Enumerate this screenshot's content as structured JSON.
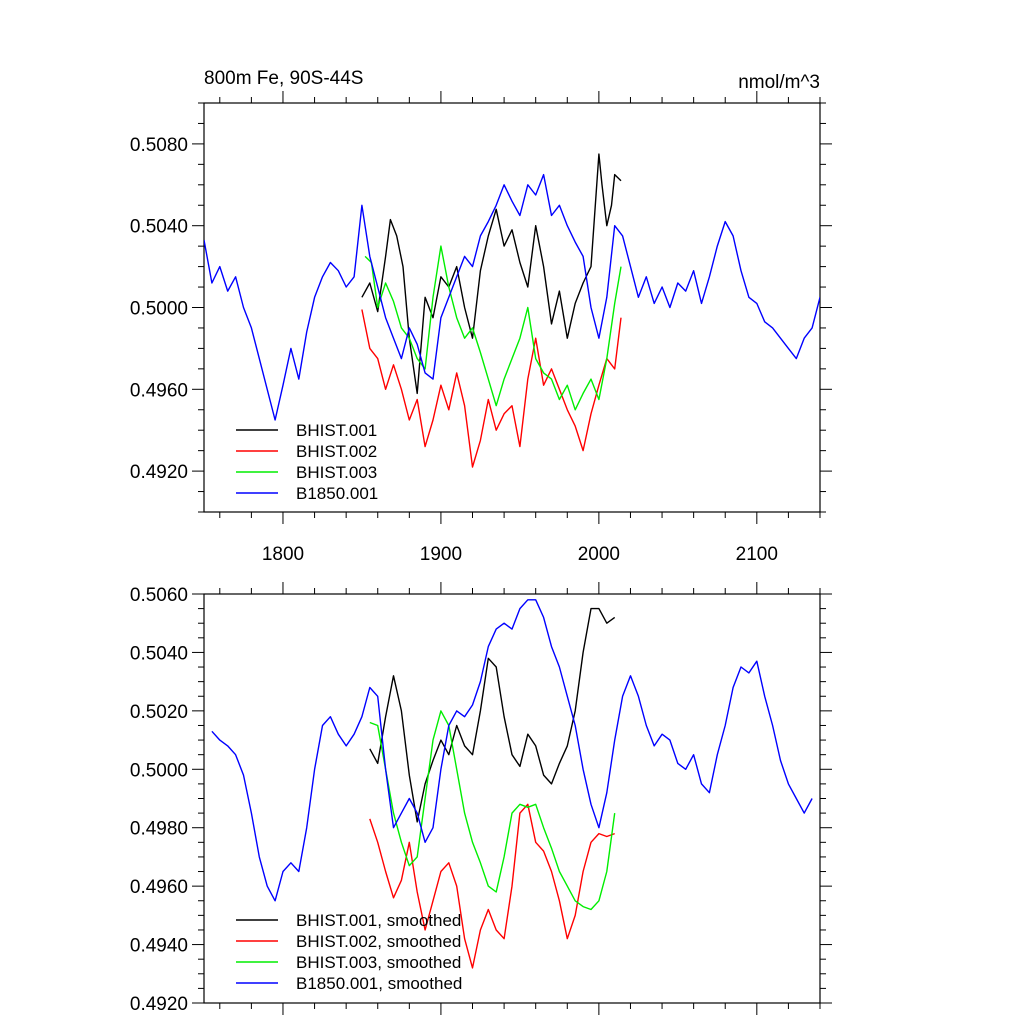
{
  "chart_data": [
    {
      "type": "line",
      "title_left": "800m Fe, 90S-44S",
      "title_right": "nmol/m^3",
      "xlabel": "",
      "ylabel": "",
      "xlim": [
        1750,
        2140
      ],
      "ylim": [
        0.49,
        0.51
      ],
      "xticks": [
        1800,
        1900,
        2000,
        2100
      ],
      "xtick_labels": [
        "1800",
        "1900",
        "2000",
        "2100"
      ],
      "yticks": [
        0.492,
        0.496,
        0.5,
        0.504,
        0.508
      ],
      "ytick_labels": [
        "0.4920",
        "0.4960",
        "0.5000",
        "0.5040",
        "0.5080"
      ],
      "legend_position": "bottom-left",
      "series": [
        {
          "name": "BHIST.001",
          "color": "#000000",
          "x": [
            1850,
            1855,
            1860,
            1865,
            1868,
            1872,
            1876,
            1880,
            1885,
            1890,
            1895,
            1900,
            1905,
            1910,
            1915,
            1920,
            1925,
            1930,
            1935,
            1940,
            1945,
            1950,
            1955,
            1960,
            1965,
            1970,
            1975,
            1980,
            1985,
            1990,
            1995,
            2000,
            2002,
            2005,
            2008,
            2010,
            2014
          ],
          "y": [
            0.5005,
            0.5012,
            0.4998,
            0.5025,
            0.5043,
            0.5035,
            0.502,
            0.4985,
            0.4958,
            0.5005,
            0.4995,
            0.5015,
            0.501,
            0.502,
            0.5,
            0.4985,
            0.5018,
            0.5035,
            0.5048,
            0.503,
            0.5038,
            0.5022,
            0.501,
            0.504,
            0.502,
            0.4992,
            0.5008,
            0.4985,
            0.5002,
            0.5012,
            0.502,
            0.5075,
            0.506,
            0.504,
            0.505,
            0.5065,
            0.5062
          ]
        },
        {
          "name": "BHIST.002",
          "color": "#ff0000",
          "x": [
            1850,
            1855,
            1860,
            1865,
            1870,
            1875,
            1880,
            1885,
            1890,
            1895,
            1900,
            1905,
            1910,
            1915,
            1920,
            1925,
            1930,
            1935,
            1940,
            1945,
            1950,
            1955,
            1960,
            1965,
            1970,
            1975,
            1980,
            1985,
            1990,
            1995,
            2000,
            2005,
            2010,
            2014
          ],
          "y": [
            0.4999,
            0.498,
            0.4975,
            0.496,
            0.4972,
            0.496,
            0.4945,
            0.4955,
            0.4932,
            0.4945,
            0.4962,
            0.495,
            0.4968,
            0.4952,
            0.4922,
            0.4935,
            0.4955,
            0.494,
            0.4948,
            0.4952,
            0.4932,
            0.4965,
            0.4985,
            0.4962,
            0.497,
            0.496,
            0.495,
            0.4942,
            0.493,
            0.4948,
            0.4962,
            0.4975,
            0.497,
            0.4995
          ]
        },
        {
          "name": "BHIST.003",
          "color": "#00ee00",
          "x": [
            1852,
            1856,
            1860,
            1865,
            1870,
            1875,
            1880,
            1885,
            1890,
            1895,
            1900,
            1905,
            1910,
            1915,
            1920,
            1925,
            1930,
            1935,
            1940,
            1945,
            1950,
            1955,
            1960,
            1965,
            1970,
            1975,
            1980,
            1985,
            1990,
            1995,
            2000,
            2005,
            2010,
            2014
          ],
          "y": [
            0.5025,
            0.5022,
            0.5,
            0.5012,
            0.5003,
            0.499,
            0.4985,
            0.4975,
            0.497,
            0.5005,
            0.503,
            0.501,
            0.4995,
            0.4985,
            0.499,
            0.4978,
            0.4965,
            0.4952,
            0.4965,
            0.4975,
            0.4985,
            0.5,
            0.4975,
            0.4968,
            0.4965,
            0.4955,
            0.4962,
            0.495,
            0.4958,
            0.4965,
            0.4955,
            0.4975,
            0.5002,
            0.502
          ]
        },
        {
          "name": "B1850.001",
          "color": "#0000ff",
          "x": [
            1750,
            1755,
            1760,
            1765,
            1770,
            1775,
            1780,
            1785,
            1790,
            1795,
            1800,
            1805,
            1810,
            1815,
            1820,
            1825,
            1830,
            1835,
            1840,
            1845,
            1850,
            1855,
            1860,
            1865,
            1870,
            1875,
            1880,
            1885,
            1890,
            1895,
            1900,
            1905,
            1910,
            1915,
            1920,
            1925,
            1930,
            1935,
            1940,
            1945,
            1950,
            1955,
            1960,
            1965,
            1970,
            1975,
            1980,
            1985,
            1990,
            1995,
            2000,
            2005,
            2010,
            2015,
            2020,
            2025,
            2030,
            2035,
            2040,
            2045,
            2050,
            2055,
            2060,
            2065,
            2070,
            2075,
            2080,
            2085,
            2090,
            2095,
            2100,
            2105,
            2110,
            2115,
            2120,
            2125,
            2130,
            2135,
            2140
          ],
          "y": [
            0.5033,
            0.5012,
            0.502,
            0.5008,
            0.5015,
            0.5,
            0.499,
            0.4975,
            0.496,
            0.4945,
            0.4962,
            0.498,
            0.4965,
            0.4988,
            0.5005,
            0.5015,
            0.5022,
            0.5018,
            0.501,
            0.5015,
            0.505,
            0.5025,
            0.501,
            0.4995,
            0.4985,
            0.4975,
            0.499,
            0.4982,
            0.4968,
            0.4965,
            0.4995,
            0.5005,
            0.5015,
            0.5025,
            0.502,
            0.5035,
            0.5042,
            0.505,
            0.506,
            0.5052,
            0.5045,
            0.506,
            0.5055,
            0.5065,
            0.5045,
            0.505,
            0.504,
            0.5032,
            0.5025,
            0.5,
            0.4985,
            0.5005,
            0.504,
            0.5035,
            0.502,
            0.5005,
            0.5015,
            0.5002,
            0.501,
            0.5,
            0.5012,
            0.5008,
            0.5018,
            0.5002,
            0.5015,
            0.503,
            0.5042,
            0.5035,
            0.5018,
            0.5005,
            0.5002,
            0.4993,
            0.499,
            0.4985,
            0.498,
            0.4975,
            0.4985,
            0.499,
            0.5005
          ]
        }
      ]
    },
    {
      "type": "line",
      "title_left": "",
      "title_right": "",
      "xlabel": "",
      "ylabel": "",
      "xlim": [
        1750,
        2140
      ],
      "ylim": [
        0.492,
        0.506
      ],
      "xticks": [
        1800,
        1900,
        2000,
        2100
      ],
      "xtick_labels": [],
      "yticks": [
        0.492,
        0.494,
        0.496,
        0.498,
        0.5,
        0.502,
        0.504,
        0.506
      ],
      "ytick_labels": [
        "0.4920",
        "0.4940",
        "0.4960",
        "0.4980",
        "0.5000",
        "0.5020",
        "0.5040",
        "0.5060"
      ],
      "legend_position": "bottom-left",
      "series": [
        {
          "name": "BHIST.001, smoothed",
          "color": "#000000",
          "x": [
            1855,
            1860,
            1865,
            1870,
            1875,
            1880,
            1885,
            1890,
            1895,
            1900,
            1905,
            1910,
            1915,
            1920,
            1925,
            1930,
            1935,
            1940,
            1945,
            1950,
            1955,
            1960,
            1965,
            1970,
            1975,
            1980,
            1985,
            1990,
            1995,
            2000,
            2005,
            2010
          ],
          "y": [
            0.5007,
            0.5002,
            0.5018,
            0.5032,
            0.502,
            0.4998,
            0.4982,
            0.4995,
            0.5003,
            0.501,
            0.5005,
            0.5015,
            0.5008,
            0.5005,
            0.502,
            0.5038,
            0.5035,
            0.5018,
            0.5005,
            0.5001,
            0.5012,
            0.5008,
            0.4998,
            0.4995,
            0.5002,
            0.5008,
            0.502,
            0.504,
            0.5055,
            0.5055,
            0.505,
            0.5052
          ]
        },
        {
          "name": "BHIST.002, smoothed",
          "color": "#ff0000",
          "x": [
            1855,
            1860,
            1865,
            1870,
            1875,
            1880,
            1885,
            1890,
            1895,
            1900,
            1905,
            1910,
            1915,
            1920,
            1925,
            1930,
            1935,
            1940,
            1945,
            1950,
            1955,
            1960,
            1965,
            1970,
            1975,
            1980,
            1985,
            1990,
            1995,
            2000,
            2005,
            2010
          ],
          "y": [
            0.4983,
            0.4975,
            0.4965,
            0.4956,
            0.4962,
            0.4975,
            0.4958,
            0.4945,
            0.4955,
            0.4965,
            0.4968,
            0.496,
            0.4942,
            0.4932,
            0.4945,
            0.4952,
            0.4945,
            0.4942,
            0.496,
            0.4985,
            0.4988,
            0.4975,
            0.4972,
            0.4965,
            0.4955,
            0.4942,
            0.495,
            0.4965,
            0.4975,
            0.4978,
            0.4977,
            0.4978
          ]
        },
        {
          "name": "BHIST.003, smoothed",
          "color": "#00ee00",
          "x": [
            1855,
            1860,
            1865,
            1870,
            1875,
            1880,
            1885,
            1890,
            1895,
            1900,
            1905,
            1910,
            1915,
            1920,
            1925,
            1930,
            1935,
            1940,
            1945,
            1950,
            1955,
            1960,
            1965,
            1970,
            1975,
            1980,
            1985,
            1990,
            1995,
            2000,
            2005,
            2010
          ],
          "y": [
            0.5016,
            0.5015,
            0.5,
            0.4985,
            0.4975,
            0.4967,
            0.497,
            0.499,
            0.501,
            0.502,
            0.5015,
            0.5,
            0.4985,
            0.4975,
            0.4968,
            0.496,
            0.4958,
            0.497,
            0.4985,
            0.4988,
            0.4987,
            0.4988,
            0.498,
            0.4973,
            0.4965,
            0.496,
            0.4955,
            0.4953,
            0.4952,
            0.4955,
            0.4965,
            0.4985
          ]
        },
        {
          "name": "B1850.001, smoothed",
          "color": "#0000ff",
          "x": [
            1755,
            1760,
            1765,
            1770,
            1775,
            1780,
            1785,
            1790,
            1795,
            1800,
            1805,
            1810,
            1815,
            1820,
            1825,
            1830,
            1835,
            1840,
            1845,
            1850,
            1855,
            1860,
            1865,
            1870,
            1875,
            1880,
            1885,
            1890,
            1895,
            1900,
            1905,
            1910,
            1915,
            1920,
            1925,
            1930,
            1935,
            1940,
            1945,
            1950,
            1955,
            1960,
            1965,
            1970,
            1975,
            1980,
            1985,
            1990,
            1995,
            2000,
            2005,
            2010,
            2015,
            2020,
            2025,
            2030,
            2035,
            2040,
            2045,
            2050,
            2055,
            2060,
            2065,
            2070,
            2075,
            2080,
            2085,
            2090,
            2095,
            2100,
            2105,
            2110,
            2115,
            2120,
            2125,
            2130,
            2135
          ],
          "y": [
            0.5013,
            0.501,
            0.5008,
            0.5005,
            0.4998,
            0.4985,
            0.497,
            0.496,
            0.4955,
            0.4965,
            0.4968,
            0.4965,
            0.498,
            0.5,
            0.5015,
            0.5018,
            0.5012,
            0.5008,
            0.5012,
            0.5018,
            0.5028,
            0.5025,
            0.5,
            0.498,
            0.4985,
            0.499,
            0.4985,
            0.4975,
            0.498,
            0.5,
            0.5015,
            0.502,
            0.5018,
            0.5022,
            0.503,
            0.5042,
            0.5048,
            0.505,
            0.5048,
            0.5055,
            0.5058,
            0.5058,
            0.5052,
            0.5042,
            0.5035,
            0.5025,
            0.5015,
            0.5,
            0.4988,
            0.498,
            0.4992,
            0.501,
            0.5025,
            0.5032,
            0.5025,
            0.5015,
            0.5008,
            0.5012,
            0.501,
            0.5002,
            0.5,
            0.5005,
            0.4995,
            0.4992,
            0.5005,
            0.5015,
            0.5028,
            0.5035,
            0.5033,
            0.5037,
            0.5025,
            0.5015,
            0.5003,
            0.4995,
            0.499,
            0.4985,
            0.499
          ]
        }
      ]
    }
  ]
}
